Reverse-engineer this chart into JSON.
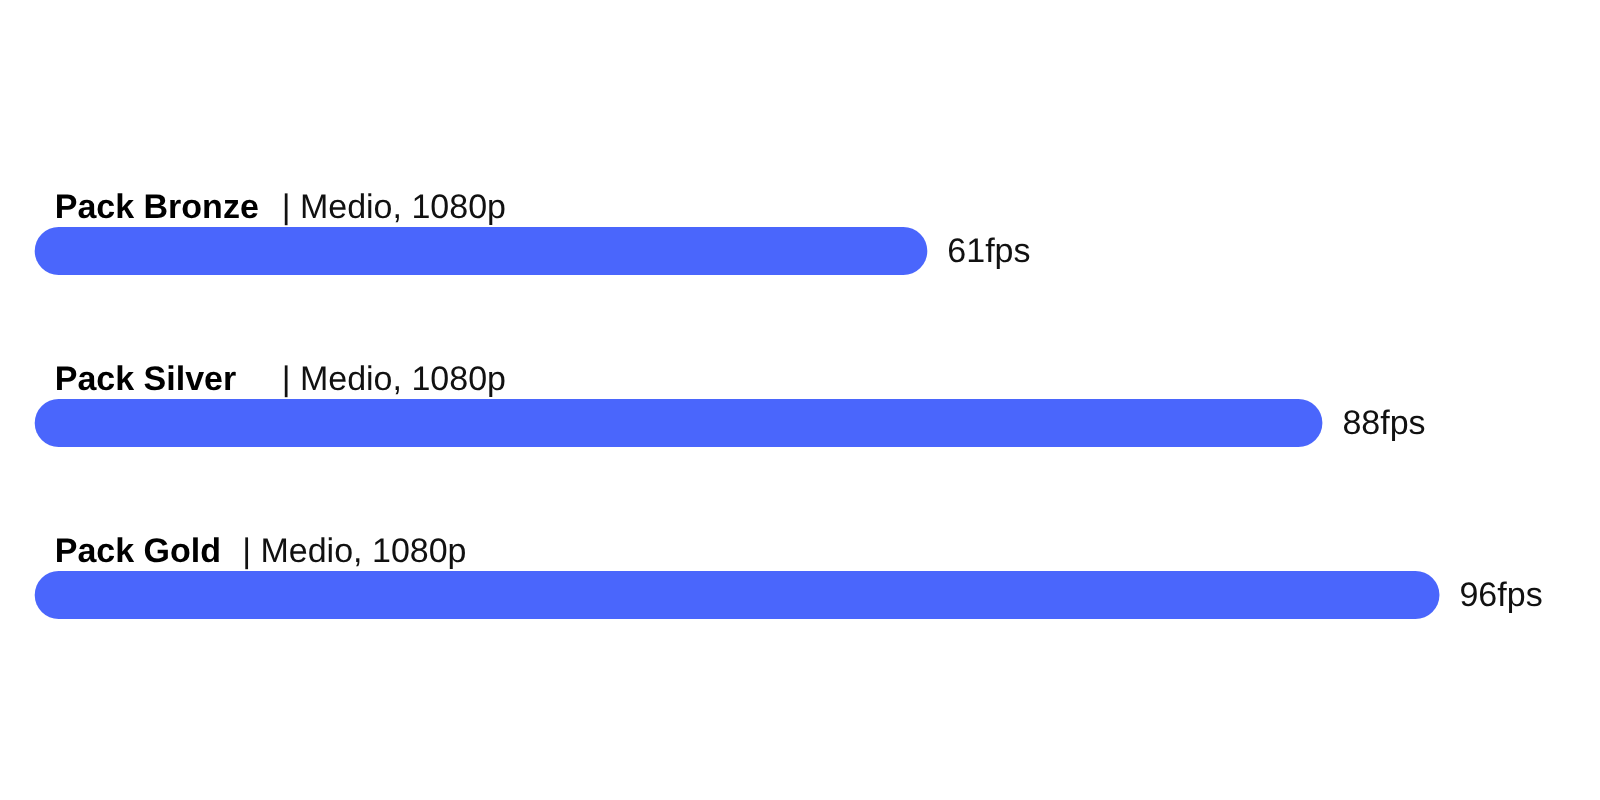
{
  "chart_data": {
    "type": "bar",
    "orientation": "horizontal",
    "categories": [
      "Pack Bronze | Medio, 1080p",
      "Pack Silver | Medio, 1080p",
      "Pack Gold | Medio, 1080p"
    ],
    "values": [
      61,
      88,
      96
    ],
    "value_labels": [
      "61fps",
      "88fps",
      "96fps"
    ],
    "color": "#4a66fc",
    "grid": false
  }
}
